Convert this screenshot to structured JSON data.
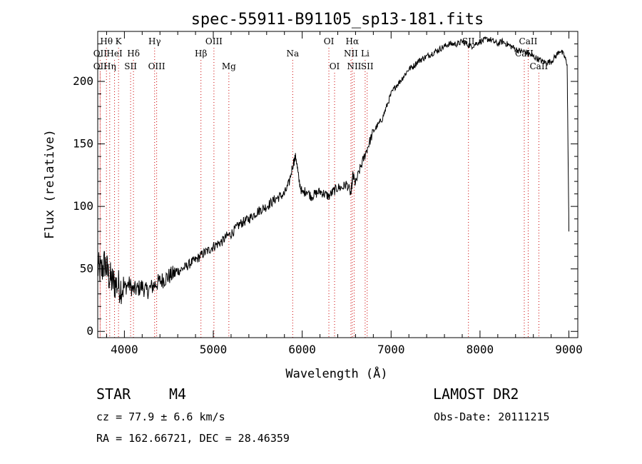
{
  "chart_data": {
    "type": "line",
    "title": "spec-55911-B91105_sp13-181.fits",
    "xlabel": "Wavelength (Å)",
    "ylabel": "Flux (relative)",
    "xlim": [
      3700,
      9100
    ],
    "ylim": [
      -5,
      240
    ],
    "x_ticks": [
      4000,
      5000,
      6000,
      7000,
      8000,
      9000
    ],
    "y_ticks": [
      0,
      50,
      100,
      150,
      200
    ],
    "grid": false,
    "line_color": "#000000",
    "marker_color": "#cc0000",
    "series": [
      {
        "x": [
          3700,
          3740,
          3780,
          3820,
          3860,
          3900,
          3950,
          4000,
          4050,
          4100,
          4150,
          4200,
          4250,
          4300,
          4350,
          4400,
          4450,
          4500,
          4550,
          4600,
          4650,
          4700,
          4750,
          4800,
          4850,
          4900,
          4950,
          5000,
          5050,
          5100,
          5150,
          5200,
          5250,
          5300,
          5350,
          5400,
          5450,
          5500,
          5550,
          5600,
          5650,
          5700,
          5750,
          5800,
          5850,
          5900,
          5930,
          5960,
          6000,
          6050,
          6100,
          6150,
          6200,
          6250,
          6300,
          6350,
          6400,
          6450,
          6500,
          6550,
          6570,
          6600,
          6650,
          6700,
          6750,
          6800,
          6850,
          6900,
          6950,
          7000,
          7050,
          7100,
          7150,
          7200,
          7250,
          7300,
          7350,
          7400,
          7450,
          7500,
          7550,
          7600,
          7650,
          7700,
          7750,
          7800,
          7850,
          7900,
          7950,
          8000,
          8050,
          8100,
          8150,
          8200,
          8250,
          8300,
          8350,
          8400,
          8450,
          8500,
          8550,
          8600,
          8650,
          8700,
          8750,
          8800,
          8850,
          8900,
          8950,
          8980,
          9000
        ],
        "y": [
          50,
          48,
          55,
          45,
          40,
          38,
          36,
          35,
          38,
          33,
          34,
          36,
          32,
          35,
          38,
          40,
          42,
          44,
          46,
          48,
          50,
          52,
          55,
          57,
          60,
          63,
          65,
          68,
          70,
          72,
          76,
          78,
          82,
          86,
          88,
          90,
          93,
          96,
          98,
          100,
          103,
          106,
          108,
          110,
          118,
          135,
          140,
          122,
          110,
          113,
          108,
          110,
          112,
          110,
          108,
          112,
          115,
          115,
          118,
          110,
          125,
          118,
          130,
          140,
          150,
          160,
          165,
          170,
          180,
          190,
          196,
          200,
          205,
          210,
          212,
          216,
          218,
          220,
          222,
          224,
          226,
          228,
          230,
          230,
          230,
          232,
          230,
          228,
          230,
          232,
          233,
          234,
          232,
          230,
          232,
          230,
          228,
          226,
          224,
          224,
          222,
          220,
          218,
          216,
          215,
          216,
          220,
          225,
          220,
          214,
          80
        ]
      }
    ],
    "line_markers": [
      {
        "label": "Hθ",
        "x": 3798,
        "row": "top"
      },
      {
        "label": "K",
        "x": 3934,
        "row": "top"
      },
      {
        "label": "Hγ",
        "x": 4340,
        "row": "top"
      },
      {
        "label": "OIII",
        "x": 5007,
        "row": "top"
      },
      {
        "label": "OI",
        "x": 6300,
        "row": "top"
      },
      {
        "label": "Hα",
        "x": 6563,
        "row": "top"
      },
      {
        "label": "SII",
        "x": 7870,
        "row": "top"
      },
      {
        "label": "CaII",
        "x": 8542,
        "row": "top"
      },
      {
        "label": "OII",
        "x": 3727,
        "row": "middle"
      },
      {
        "label": "HeI",
        "x": 3889,
        "row": "middle"
      },
      {
        "label": "Hδ",
        "x": 4102,
        "row": "middle"
      },
      {
        "label": "Hβ",
        "x": 4861,
        "row": "middle"
      },
      {
        "label": "Na",
        "x": 5893,
        "row": "middle"
      },
      {
        "label": "NII",
        "x": 6548,
        "row": "middle"
      },
      {
        "label": "Li",
        "x": 6708,
        "row": "middle"
      },
      {
        "label": "CaII",
        "x": 8498,
        "row": "middle"
      },
      {
        "label": "OII",
        "x": 3727,
        "row": "bottom"
      },
      {
        "label": "Hη",
        "x": 3835,
        "row": "bottom"
      },
      {
        "label": "SII",
        "x": 4070,
        "row": "bottom"
      },
      {
        "label": "OIII",
        "x": 4363,
        "row": "bottom"
      },
      {
        "label": "Mg",
        "x": 5175,
        "row": "bottom"
      },
      {
        "label": "OI",
        "x": 6364,
        "row": "bottom"
      },
      {
        "label": "NII",
        "x": 6584,
        "row": "bottom"
      },
      {
        "label": "SII",
        "x": 6731,
        "row": "bottom"
      },
      {
        "label": "CaII",
        "x": 8662,
        "row": "bottom"
      }
    ]
  },
  "info": {
    "object_class": "STAR",
    "subclass": "M4",
    "survey": "LAMOST DR2",
    "cz": "cz = 77.9 ± 6.6 km/s",
    "obs_date": "Obs-Date: 20111215",
    "radec": "RA = 162.66721, DEC =  28.46359"
  }
}
